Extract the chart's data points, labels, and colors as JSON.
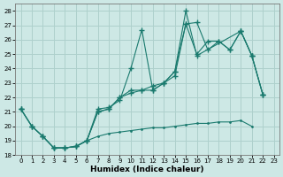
{
  "xlabel": "Humidex (Indice chaleur)",
  "xlim": [
    -0.5,
    23.5
  ],
  "ylim": [
    18,
    28.5
  ],
  "yticks": [
    18,
    19,
    20,
    21,
    22,
    23,
    24,
    25,
    26,
    27,
    28
  ],
  "xticks": [
    0,
    1,
    2,
    3,
    4,
    5,
    6,
    7,
    8,
    9,
    10,
    11,
    12,
    13,
    14,
    15,
    16,
    17,
    18,
    19,
    20,
    21,
    22,
    23
  ],
  "background_color": "#cde8e5",
  "grid_color": "#aed0cc",
  "line_color": "#1a7a6e",
  "lines": [
    {
      "x": [
        0,
        1,
        2,
        3,
        4,
        5,
        6,
        7,
        8,
        9,
        10,
        11,
        12,
        13,
        14,
        15,
        16,
        20,
        21,
        22
      ],
      "y": [
        21.2,
        20.0,
        19.3,
        18.5,
        18.5,
        18.6,
        19.0,
        21.2,
        21.3,
        21.8,
        24.0,
        26.7,
        22.5,
        23.0,
        23.8,
        28.0,
        24.9,
        26.6,
        24.9,
        22.2
      ]
    },
    {
      "x": [
        0,
        1,
        2,
        3,
        4,
        5,
        6,
        7,
        8,
        9,
        10,
        11,
        12,
        13,
        14,
        15,
        16,
        17,
        18,
        19,
        20,
        21,
        22
      ],
      "y": [
        21.2,
        20.0,
        19.3,
        18.5,
        18.5,
        18.6,
        19.0,
        21.0,
        21.2,
        22.0,
        22.3,
        22.5,
        22.8,
        23.0,
        23.5,
        27.1,
        27.2,
        25.3,
        25.9,
        25.3,
        26.6,
        24.9,
        22.2
      ]
    },
    {
      "x": [
        0,
        1,
        2,
        3,
        4,
        5,
        6,
        7,
        8,
        9,
        10,
        11,
        12,
        13,
        14,
        15,
        16,
        17,
        18,
        19,
        20,
        21,
        22
      ],
      "y": [
        21.2,
        20.0,
        19.3,
        18.5,
        18.5,
        18.6,
        19.0,
        21.0,
        21.2,
        22.0,
        22.5,
        22.5,
        22.5,
        23.0,
        23.8,
        27.1,
        25.0,
        25.9,
        25.9,
        25.3,
        26.6,
        24.9,
        22.2
      ]
    },
    {
      "x": [
        3,
        4,
        5,
        6,
        7,
        8,
        9,
        10,
        11,
        12,
        13,
        14,
        15,
        16,
        17,
        18,
        19,
        20,
        21
      ],
      "y": [
        18.5,
        18.5,
        18.6,
        19.0,
        19.3,
        19.5,
        19.6,
        19.7,
        19.8,
        19.9,
        19.9,
        20.0,
        20.1,
        20.2,
        20.2,
        20.3,
        20.3,
        20.4,
        20.0
      ]
    }
  ]
}
